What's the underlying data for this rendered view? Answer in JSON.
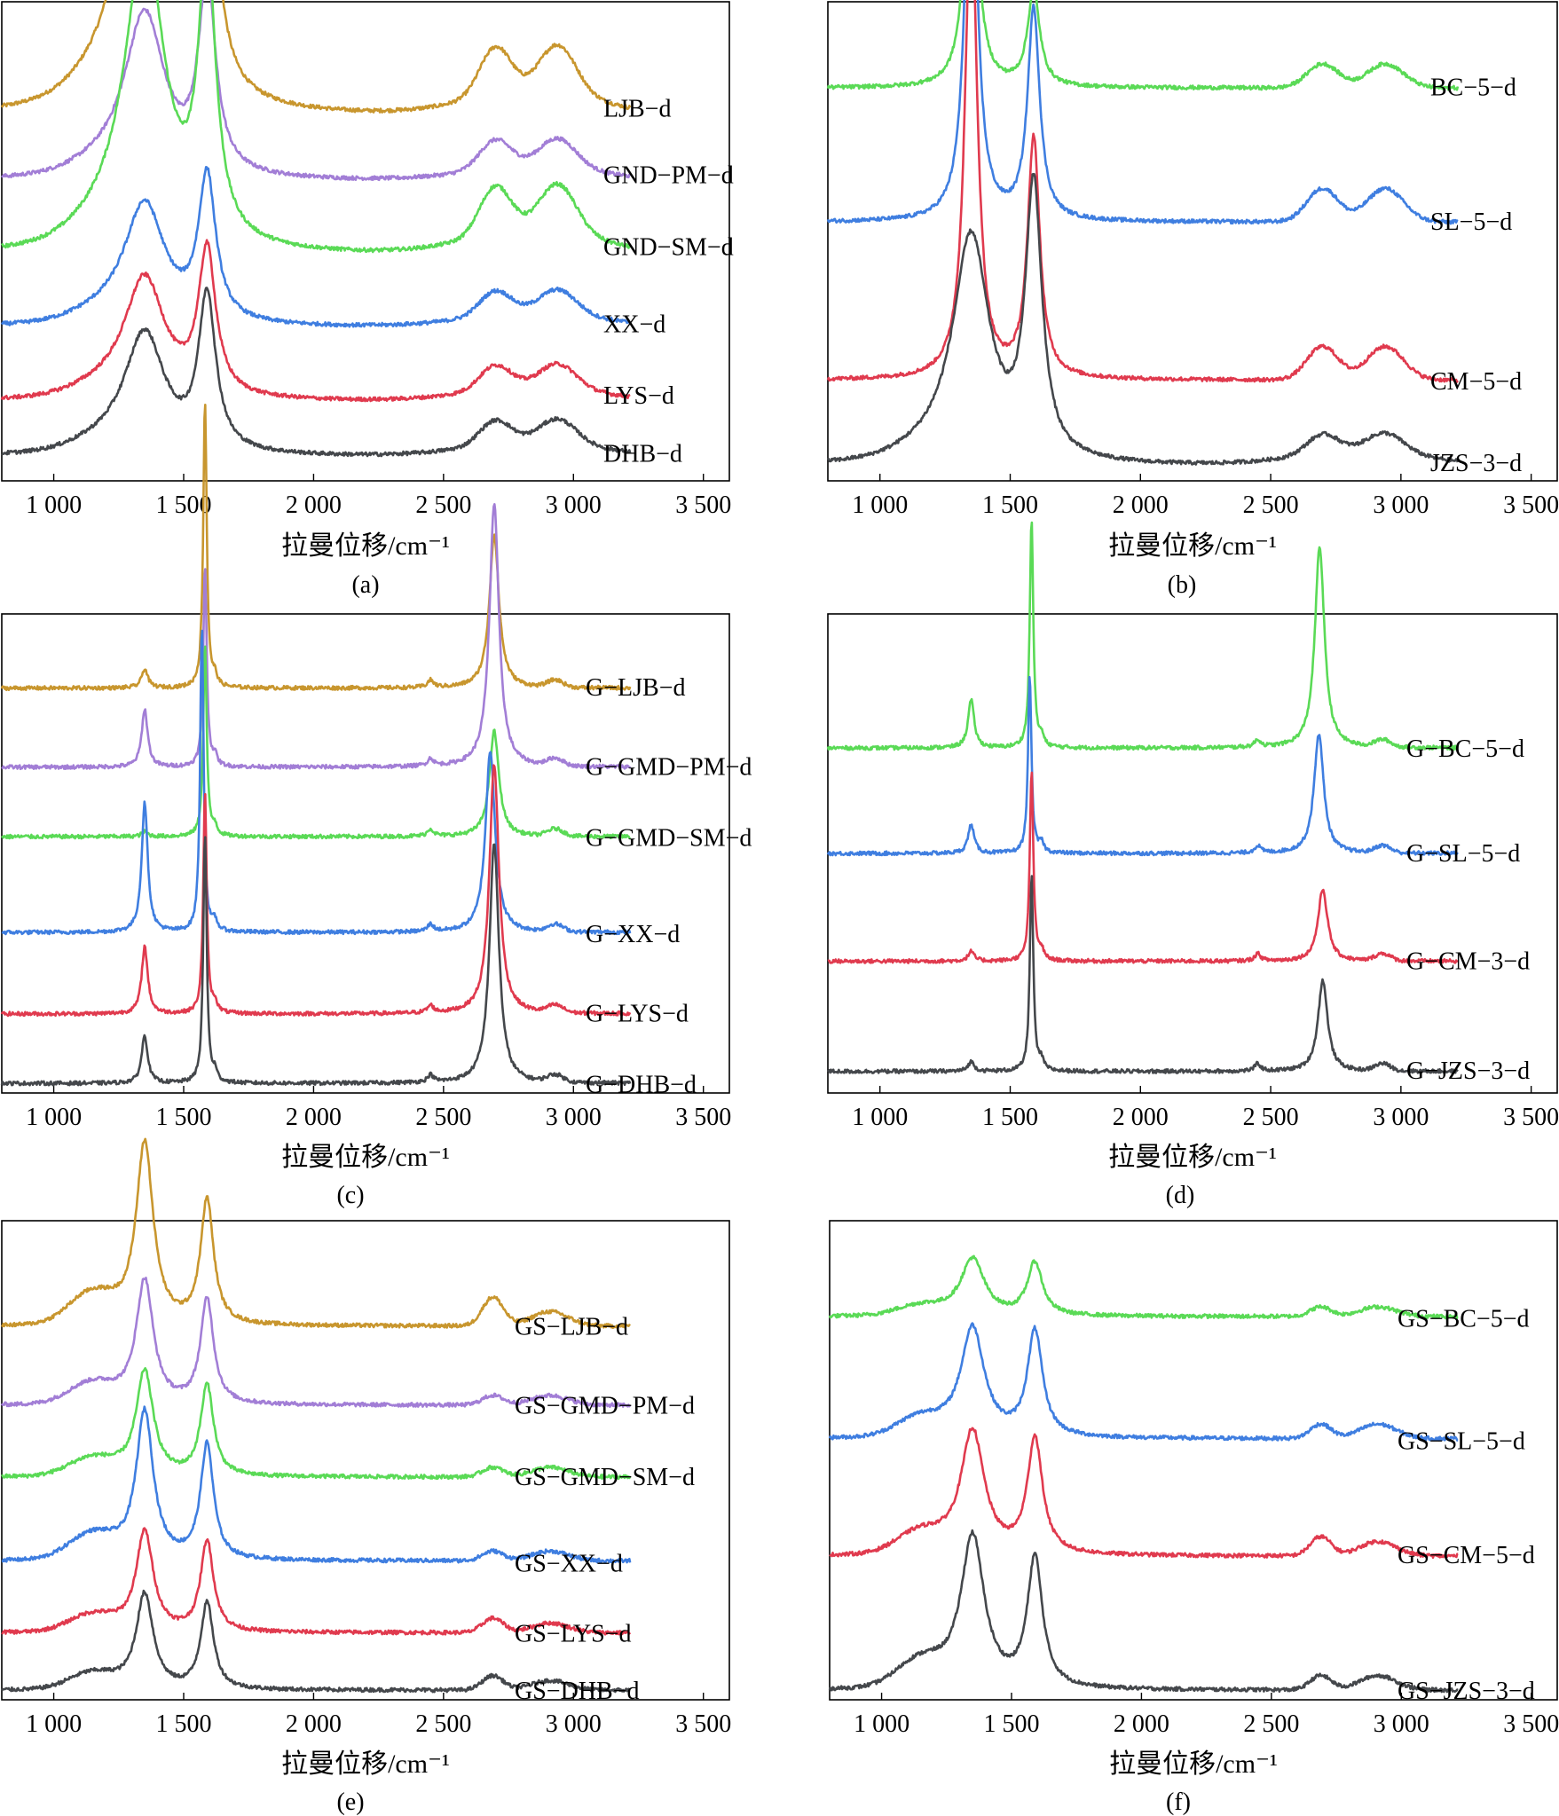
{
  "chart_data": [
    {
      "panel": "(a)",
      "type": "line",
      "xlabel": "拉曼位移/cm⁻¹",
      "ylabel": "",
      "xlim": [
        800,
        3600
      ],
      "xticks": [
        1000,
        1500,
        2000,
        2500,
        3000,
        3500
      ],
      "xtick_labels": [
        "1 000",
        "1 500",
        "2 000",
        "2 500",
        "3 000",
        "3 500"
      ],
      "grid": false,
      "series": [
        {
          "name": "LJB−d",
          "color": "#c8962e",
          "offset": 0.76,
          "d": 0.73,
          "dw": 95,
          "g": 0.61,
          "gw": 40,
          "sd": 0.1,
          "bg": 0.05
        },
        {
          "name": "GND−PM−d",
          "color": "#a27ed6",
          "offset": 0.625,
          "d": 0.34,
          "dw": 95,
          "g": 0.39,
          "gw": 40,
          "sd": 0.06,
          "bg": 0.03
        },
        {
          "name": "GND−SM−d",
          "color": "#5ada56",
          "offset": 0.47,
          "d": 0.63,
          "dw": 95,
          "g": 0.58,
          "gw": 40,
          "sd": 0.1,
          "bg": 0.05
        },
        {
          "name": "XX−d",
          "color": "#3f7ee0",
          "offset": 0.32,
          "d": 0.25,
          "dw": 95,
          "g": 0.3,
          "gw": 40,
          "sd": 0.05,
          "bg": 0.03
        },
        {
          "name": "LYS−d",
          "color": "#e03a4e",
          "offset": 0.165,
          "d": 0.25,
          "dw": 95,
          "g": 0.3,
          "gw": 40,
          "sd": 0.05,
          "bg": 0.03
        },
        {
          "name": "DHB−d",
          "color": "#44474b",
          "offset": 0.05,
          "d": 0.25,
          "dw": 95,
          "g": 0.32,
          "gw": 40,
          "sd": 0.05,
          "bg": 0.03
        }
      ]
    },
    {
      "panel": "(b)",
      "type": "line",
      "xlabel": "拉曼位移/cm⁻¹",
      "ylabel": "",
      "xlim": [
        800,
        3600
      ],
      "xticks": [
        1000,
        1500,
        2000,
        2500,
        3000,
        3500
      ],
      "xtick_labels": [
        "1 000",
        "1 500",
        "2 000",
        "2 500",
        "3 000",
        "3 500"
      ],
      "grid": false,
      "series": [
        {
          "name": "BC−5−d",
          "color": "#5ada56",
          "offset": 0.82,
          "d": 0.58,
          "dw": 28,
          "g": 0.2,
          "gw": 28,
          "sd": 0.05,
          "bg": 0.0
        },
        {
          "name": "SL−5−d",
          "color": "#3f7ee0",
          "offset": 0.54,
          "d": 0.86,
          "dw": 28,
          "g": 0.44,
          "gw": 28,
          "sd": 0.07,
          "bg": 0.0
        },
        {
          "name": "CM−5−d",
          "color": "#e03a4e",
          "offset": 0.21,
          "d": 1.0,
          "dw": 28,
          "g": 0.5,
          "gw": 28,
          "sd": 0.07,
          "bg": 0.0
        },
        {
          "name": "JZS−3−d",
          "color": "#44474b",
          "offset": 0.03,
          "d": 0.47,
          "dw": 85,
          "g": 0.56,
          "gw": 38,
          "sd": 0.04,
          "bg": 0.03
        }
      ]
    },
    {
      "panel": "(c)",
      "type": "line",
      "xlabel": "拉曼位移/cm⁻¹",
      "ylabel": "",
      "xlim": [
        800,
        3600
      ],
      "xticks": [
        1000,
        1500,
        2000,
        2500,
        3000,
        3500
      ],
      "xtick_labels": [
        "1 000",
        "1 500",
        "2 000",
        "2 500",
        "3 000",
        "3 500"
      ],
      "grid": false,
      "series": [
        {
          "name": "G−LJB−d",
          "color": "#c8962e",
          "offset": 0.845,
          "d": 0.04,
          "g": 0.6,
          "g2d": 0.32,
          "dpos": 1350,
          "gpos": 1582,
          "g2dpos": 2695
        },
        {
          "name": "G−GMD−PM−d",
          "color": "#a27ed6",
          "offset": 0.68,
          "d": 0.12,
          "g": 0.42,
          "g2d": 0.55,
          "dpos": 1350,
          "gpos": 1582,
          "g2dpos": 2695
        },
        {
          "name": "G−GMD−SM−d",
          "color": "#5ada56",
          "offset": 0.535,
          "d": 0.01,
          "g": 0.4,
          "g2d": 0.22,
          "dpos": 1350,
          "gpos": 1582,
          "g2dpos": 2695
        },
        {
          "name": "G−XX−d",
          "color": "#3f7ee0",
          "offset": 0.335,
          "d": 0.27,
          "g": 0.64,
          "g2d": 0.38,
          "dpos": 1350,
          "gpos": 1570,
          "g2dpos": 2680
        },
        {
          "name": "G−LYS−d",
          "color": "#e03a4e",
          "offset": 0.165,
          "d": 0.14,
          "g": 0.46,
          "g2d": 0.52,
          "dpos": 1350,
          "gpos": 1582,
          "g2dpos": 2695
        },
        {
          "name": "G−DHB−d",
          "color": "#44474b",
          "offset": 0.02,
          "d": 0.1,
          "g": 0.52,
          "g2d": 0.5,
          "dpos": 1350,
          "gpos": 1582,
          "g2dpos": 2695
        }
      ]
    },
    {
      "panel": "(d)",
      "type": "line",
      "xlabel": "拉曼位移/cm⁻¹",
      "ylabel": "",
      "xlim": [
        800,
        3600
      ],
      "xticks": [
        1000,
        1500,
        2000,
        2500,
        3000,
        3500
      ],
      "xtick_labels": [
        "1 000",
        "1 500",
        "2 000",
        "2 500",
        "3 000",
        "3 500"
      ],
      "grid": false,
      "series": [
        {
          "name": "G−BC−5−d",
          "color": "#5ada56",
          "offset": 0.72,
          "d": 0.1,
          "g": 0.48,
          "g2d": 0.42,
          "dpos": 1350,
          "gpos": 1582,
          "g2dpos": 2688
        },
        {
          "name": "G−SL−5−d",
          "color": "#3f7ee0",
          "offset": 0.5,
          "d": 0.06,
          "g": 0.37,
          "g2d": 0.25,
          "dpos": 1350,
          "gpos": 1575,
          "g2dpos": 2685
        },
        {
          "name": "G−CM−3−d",
          "color": "#e03a4e",
          "offset": 0.275,
          "d": 0.02,
          "g": 0.4,
          "g2d": 0.15,
          "dpos": 1350,
          "gpos": 1582,
          "g2dpos": 2700
        },
        {
          "name": "G−JZS−3−d",
          "color": "#44474b",
          "offset": 0.045,
          "d": 0.02,
          "g": 0.41,
          "g2d": 0.19,
          "dpos": 1350,
          "gpos": 1582,
          "g2dpos": 2700
        }
      ]
    },
    {
      "panel": "(e)",
      "type": "line",
      "xlabel": "拉曼位移/cm⁻¹",
      "ylabel": "",
      "xlim": [
        800,
        3600
      ],
      "xticks": [
        1000,
        1500,
        2000,
        2500,
        3000,
        3500
      ],
      "xtick_labels": [
        "1 000",
        "1 500",
        "2 000",
        "2 500",
        "3 000",
        "3 500"
      ],
      "grid": false,
      "series": [
        {
          "name": "GS−LJB−d",
          "color": "#c8962e",
          "offset": 0.78,
          "d": 0.38,
          "dw": 40,
          "g": 0.26,
          "gw": 30,
          "g2d": 0.06,
          "sd": 0.03
        },
        {
          "name": "GS−GMD−PM−d",
          "color": "#a27ed6",
          "offset": 0.615,
          "d": 0.26,
          "dw": 40,
          "g": 0.22,
          "gw": 30,
          "g2d": 0.02,
          "sd": 0.02
        },
        {
          "name": "GS−GMD−SM−d",
          "color": "#5ada56",
          "offset": 0.465,
          "d": 0.22,
          "dw": 40,
          "g": 0.19,
          "gw": 30,
          "g2d": 0.02,
          "sd": 0.02
        },
        {
          "name": "GS−XX−d",
          "color": "#3f7ee0",
          "offset": 0.29,
          "d": 0.31,
          "dw": 40,
          "g": 0.24,
          "gw": 30,
          "g2d": 0.02,
          "sd": 0.02
        },
        {
          "name": "GS−LYS−d",
          "color": "#e03a4e",
          "offset": 0.14,
          "d": 0.21,
          "dw": 40,
          "g": 0.19,
          "gw": 30,
          "g2d": 0.03,
          "sd": 0.02
        },
        {
          "name": "GS−DHB−d",
          "color": "#44474b",
          "offset": 0.02,
          "d": 0.2,
          "dw": 40,
          "g": 0.18,
          "gw": 30,
          "g2d": 0.03,
          "sd": 0.02
        }
      ]
    },
    {
      "panel": "(f)",
      "type": "line",
      "xlabel": "拉曼位移/cm⁻¹",
      "ylabel": "",
      "xlim": [
        800,
        3600
      ],
      "xticks": [
        1000,
        1500,
        2000,
        2500,
        3000,
        3500
      ],
      "xtick_labels": [
        "1 000",
        "1 500",
        "2 000",
        "2 500",
        "3 000",
        "3 500"
      ],
      "grid": false,
      "series": [
        {
          "name": "GS−BC−5−d",
          "color": "#5ada56",
          "offset": 0.8,
          "d": 0.12,
          "dw": 55,
          "g": 0.11,
          "gw": 35,
          "g2d": 0.02,
          "sd": 0.02
        },
        {
          "name": "GS−SL−5−d",
          "color": "#3f7ee0",
          "offset": 0.545,
          "d": 0.23,
          "dw": 55,
          "g": 0.22,
          "gw": 35,
          "g2d": 0.03,
          "sd": 0.03
        },
        {
          "name": "GS−CM−5−d",
          "color": "#e03a4e",
          "offset": 0.3,
          "d": 0.26,
          "dw": 55,
          "g": 0.24,
          "gw": 35,
          "g2d": 0.04,
          "sd": 0.03
        },
        {
          "name": "GS−JZS−3−d",
          "color": "#44474b",
          "offset": 0.02,
          "d": 0.32,
          "dw": 55,
          "g": 0.27,
          "gw": 35,
          "g2d": 0.03,
          "sd": 0.03
        }
      ]
    }
  ]
}
